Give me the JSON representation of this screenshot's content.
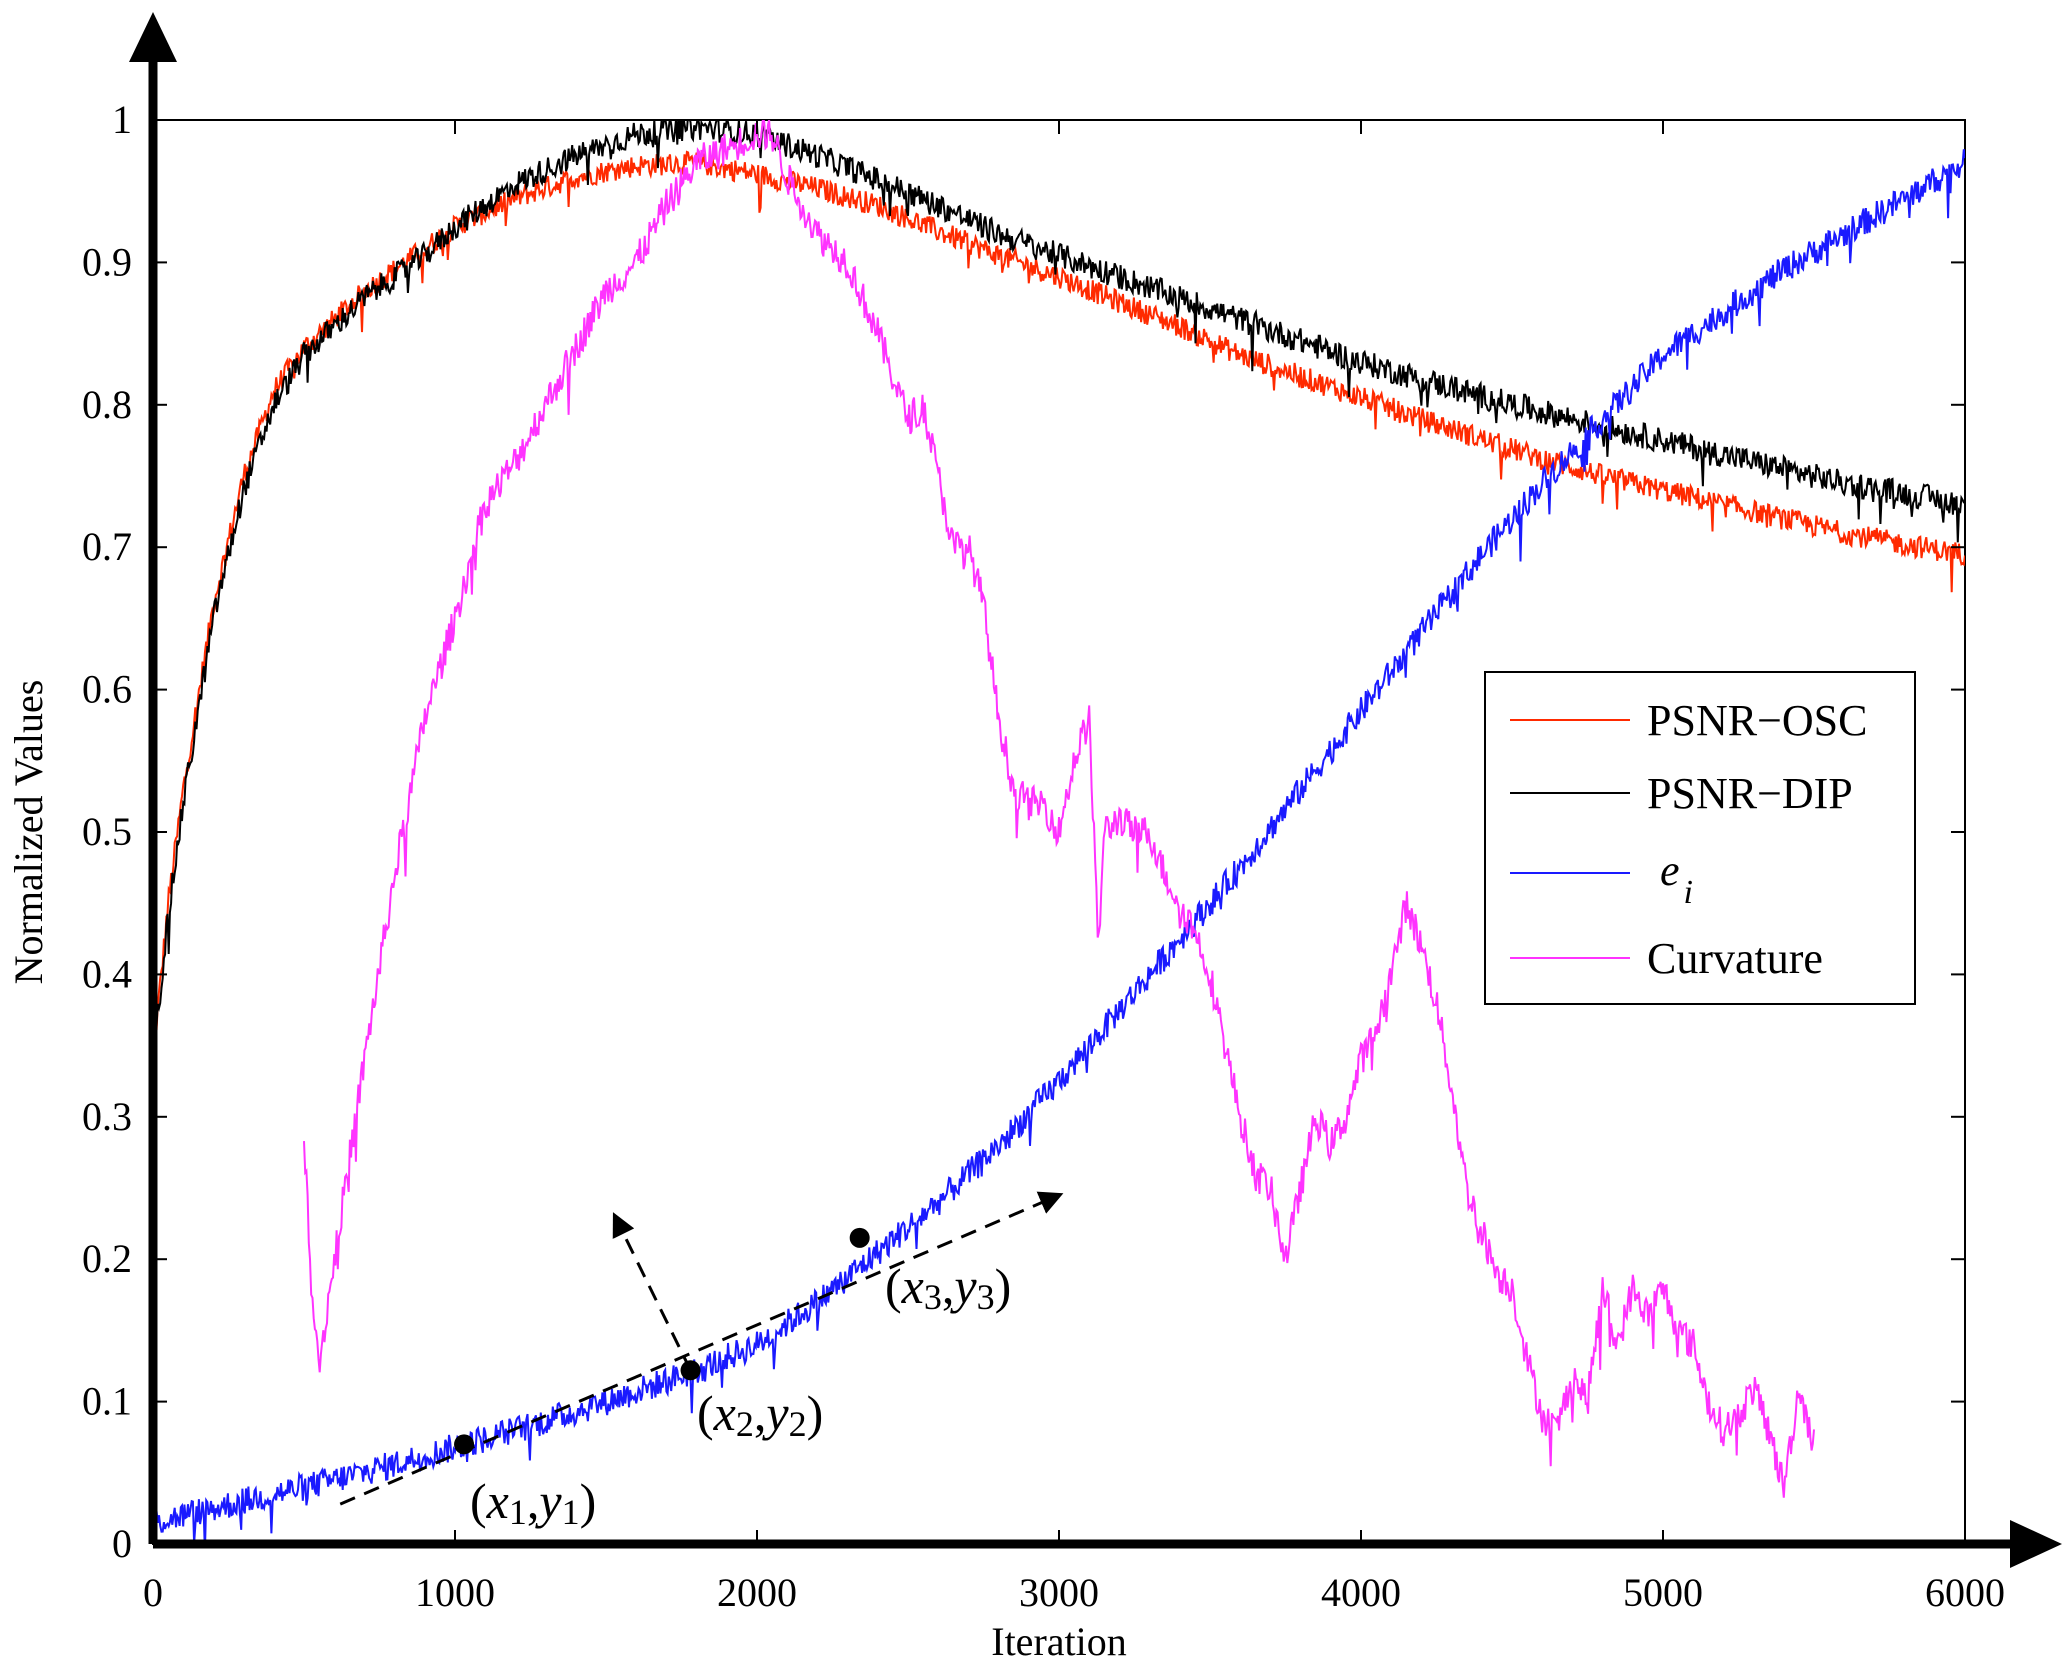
{
  "chart_data": {
    "type": "line",
    "title": "",
    "xlabel": "Iteration",
    "ylabel": "Normalized Values",
    "xlim": [
      0,
      6000
    ],
    "ylim": [
      0,
      1
    ],
    "xticks": [
      "0",
      "1000",
      "2000",
      "3000",
      "4000",
      "5000",
      "6000"
    ],
    "yticks": [
      "0",
      "0.1",
      "0.2",
      "0.3",
      "0.4",
      "0.5",
      "0.6",
      "0.7",
      "0.8",
      "0.9",
      "1"
    ],
    "grid": false,
    "legend_position": "right",
    "series": [
      {
        "name": "PSNR−OSC",
        "color": "#ff2a00",
        "x": [
          0,
          50,
          100,
          200,
          300,
          400,
          500,
          600,
          700,
          800,
          900,
          1000,
          1200,
          1400,
          1600,
          1800,
          2000,
          2200,
          2400,
          2600,
          2800,
          3000,
          3200,
          3400,
          3600,
          3800,
          4000,
          4200,
          4400,
          4600,
          4800,
          5000,
          5200,
          5400,
          5600,
          5800,
          6000
        ],
        "y": [
          0.34,
          0.45,
          0.53,
          0.66,
          0.75,
          0.81,
          0.84,
          0.86,
          0.88,
          0.895,
          0.91,
          0.925,
          0.945,
          0.96,
          0.968,
          0.97,
          0.962,
          0.952,
          0.94,
          0.922,
          0.905,
          0.89,
          0.872,
          0.855,
          0.835,
          0.82,
          0.805,
          0.79,
          0.776,
          0.762,
          0.75,
          0.74,
          0.73,
          0.72,
          0.71,
          0.702,
          0.695
        ],
        "noise": 0.008
      },
      {
        "name": "PSNR−DIP",
        "color": "#000000",
        "x": [
          0,
          50,
          100,
          200,
          300,
          400,
          500,
          600,
          700,
          800,
          900,
          1000,
          1200,
          1400,
          1600,
          1800,
          2000,
          2200,
          2400,
          2600,
          2800,
          3000,
          3200,
          3400,
          3600,
          3800,
          4000,
          4200,
          4400,
          4600,
          4800,
          5000,
          5200,
          5400,
          5600,
          5800,
          6000
        ],
        "y": [
          0.34,
          0.44,
          0.52,
          0.65,
          0.74,
          0.8,
          0.835,
          0.855,
          0.875,
          0.89,
          0.905,
          0.925,
          0.955,
          0.975,
          0.99,
          0.995,
          0.99,
          0.975,
          0.958,
          0.94,
          0.92,
          0.905,
          0.89,
          0.875,
          0.86,
          0.845,
          0.83,
          0.818,
          0.806,
          0.795,
          0.785,
          0.775,
          0.765,
          0.755,
          0.745,
          0.738,
          0.73
        ],
        "noise": 0.009
      },
      {
        "name": "e",
        "name_subscript": "i",
        "color": "#1a1aff",
        "x": [
          0,
          200,
          400,
          600,
          800,
          1000,
          1200,
          1400,
          1600,
          1800,
          2000,
          2200,
          2400,
          2600,
          2800,
          3000,
          3200,
          3400,
          3600,
          3800,
          4000,
          4200,
          4400,
          4600,
          4800,
          5000,
          5200,
          5400,
          5600,
          5800,
          6000
        ],
        "y": [
          0.015,
          0.025,
          0.035,
          0.045,
          0.056,
          0.068,
          0.08,
          0.093,
          0.107,
          0.122,
          0.14,
          0.17,
          0.205,
          0.24,
          0.28,
          0.325,
          0.375,
          0.425,
          0.475,
          0.53,
          0.585,
          0.64,
          0.695,
          0.745,
          0.79,
          0.835,
          0.865,
          0.895,
          0.92,
          0.945,
          0.97
        ],
        "noise": 0.01
      },
      {
        "name": "Curvature",
        "color": "#ff33ff",
        "x": [
          500,
          520,
          550,
          600,
          700,
          800,
          900,
          1000,
          1100,
          1200,
          1300,
          1400,
          1500,
          1600,
          1700,
          1800,
          1900,
          2000,
          2050,
          2100,
          2200,
          2300,
          2400,
          2450,
          2500,
          2550,
          2600,
          2650,
          2700,
          2750,
          2800,
          2850,
          2900,
          2950,
          3000,
          3050,
          3100,
          3130,
          3150,
          3200,
          3250,
          3300,
          3350,
          3400,
          3450,
          3500,
          3550,
          3600,
          3650,
          3700,
          3750,
          3800,
          3850,
          3900,
          3950,
          4000,
          4050,
          4100,
          4150,
          4200,
          4250,
          4300,
          4350,
          4400,
          4450,
          4500,
          4550,
          4600,
          4650,
          4700,
          4750,
          4800,
          4850,
          4900,
          4950,
          5000,
          5050,
          5100,
          5150,
          5200,
          5250,
          5300,
          5350,
          5400,
          5450,
          5500
        ],
        "y": [
          0.29,
          0.2,
          0.125,
          0.2,
          0.34,
          0.47,
          0.58,
          0.65,
          0.73,
          0.76,
          0.8,
          0.84,
          0.88,
          0.9,
          0.94,
          0.97,
          0.98,
          0.99,
          0.99,
          0.96,
          0.92,
          0.9,
          0.85,
          0.82,
          0.79,
          0.8,
          0.75,
          0.7,
          0.7,
          0.66,
          0.58,
          0.53,
          0.52,
          0.52,
          0.5,
          0.55,
          0.58,
          0.42,
          0.5,
          0.51,
          0.5,
          0.5,
          0.47,
          0.45,
          0.43,
          0.4,
          0.35,
          0.3,
          0.26,
          0.25,
          0.2,
          0.25,
          0.3,
          0.28,
          0.3,
          0.34,
          0.36,
          0.4,
          0.45,
          0.42,
          0.38,
          0.32,
          0.25,
          0.22,
          0.19,
          0.18,
          0.13,
          0.09,
          0.08,
          0.12,
          0.1,
          0.18,
          0.14,
          0.18,
          0.16,
          0.18,
          0.15,
          0.14,
          0.1,
          0.08,
          0.09,
          0.11,
          0.08,
          0.04,
          0.11,
          0.07
        ],
        "noise": 0.012
      }
    ],
    "annotations": [
      {
        "base": "x",
        "sub": "1",
        "base2": "y",
        "sub2": "1",
        "point": [
          1030,
          0.07
        ]
      },
      {
        "base": "x",
        "sub": "2",
        "base2": "y",
        "sub2": "2",
        "point": [
          1780,
          0.122
        ]
      },
      {
        "base": "x",
        "sub": "3",
        "base2": "y",
        "sub2": "3",
        "point": [
          2340,
          0.215
        ]
      }
    ]
  }
}
